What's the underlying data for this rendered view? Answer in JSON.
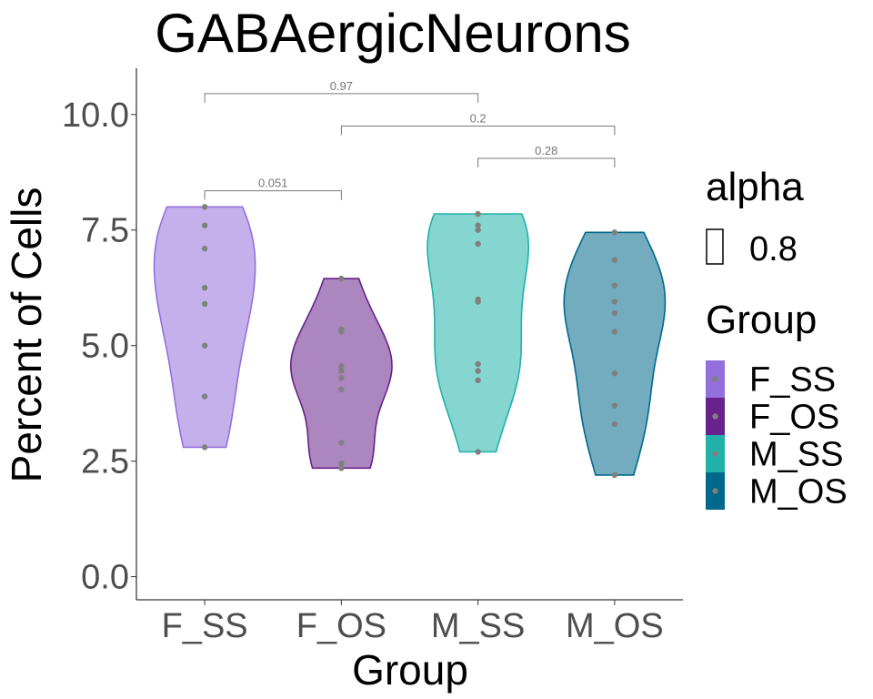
{
  "chart_data": {
    "type": "violin",
    "title": "GABAergicNeurons",
    "xlabel": "Group",
    "ylabel": "Percent of Cells",
    "ylim": [
      -0.5,
      11
    ],
    "yticks": [
      0,
      2.5,
      5,
      7.5,
      10
    ],
    "ytick_labels": [
      "0.0",
      "2.5",
      "5.0",
      "7.5",
      "10.0"
    ],
    "categories": [
      "F_SS",
      "F_OS",
      "M_SS",
      "M_OS"
    ],
    "colors": {
      "F_SS": "#9370db",
      "F_OS": "#68228b",
      "M_SS": "#20b2aa",
      "M_OS": "#00688b"
    },
    "point_color": "#808080",
    "fill_alpha": 0.55,
    "series": [
      {
        "name": "F_SS",
        "values": [
          8.0,
          7.6,
          7.1,
          6.25,
          5.9,
          5.0,
          3.9,
          2.8
        ]
      },
      {
        "name": "F_OS",
        "values": [
          6.45,
          5.35,
          5.3,
          4.55,
          4.45,
          4.3,
          4.05,
          2.9,
          2.45,
          2.35
        ]
      },
      {
        "name": "M_SS",
        "values": [
          7.85,
          7.6,
          7.5,
          7.2,
          6.0,
          5.95,
          4.6,
          4.45,
          4.25,
          2.7
        ]
      },
      {
        "name": "M_OS",
        "values": [
          7.45,
          6.85,
          6.3,
          5.95,
          5.7,
          5.3,
          4.4,
          3.7,
          3.3,
          2.2
        ]
      }
    ],
    "comparisons": [
      {
        "groups": [
          "F_SS",
          "F_OS"
        ],
        "label": "0.051",
        "y": 8.35
      },
      {
        "groups": [
          "M_SS",
          "M_OS"
        ],
        "label": "0.28",
        "y": 9.05
      },
      {
        "groups": [
          "F_OS",
          "M_OS"
        ],
        "label": "0.2",
        "y": 9.75
      },
      {
        "groups": [
          "F_SS",
          "M_SS"
        ],
        "label": "0.97",
        "y": 10.45
      }
    ],
    "legend": {
      "position": "right",
      "alpha_title": "alpha",
      "alpha_label": "0.8",
      "group_title": "Group",
      "items": [
        "F_SS",
        "F_OS",
        "M_SS",
        "M_OS"
      ]
    },
    "grid": false
  }
}
